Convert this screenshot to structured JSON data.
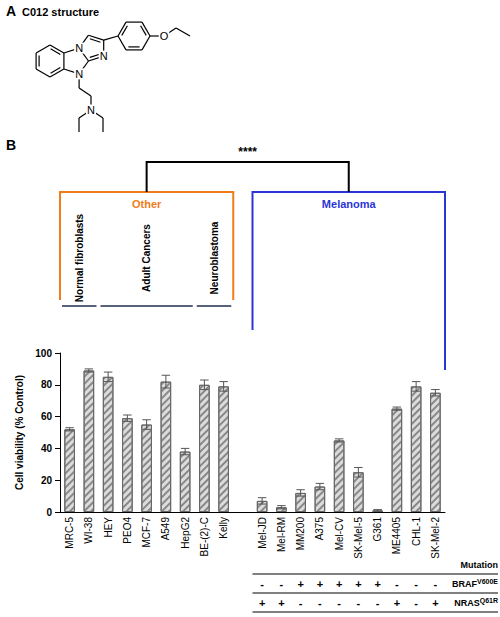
{
  "panel_labels": [
    "A",
    "B"
  ],
  "structure": {
    "title": "C012 structure",
    "atoms": [
      "N",
      "N",
      "N",
      "N",
      "O"
    ]
  },
  "chart_data": {
    "type": "bar",
    "y_label": "Cell viability (% Control)",
    "categories": [
      "MRC-5",
      "WI-38",
      "HEY",
      "PEO4",
      "MCF-7",
      "A549",
      "HepG2",
      "BE-(2)-C",
      "Kelly",
      null,
      "Mel-JD",
      "Mel-RM",
      "MM200",
      "A375",
      "Mel-CV",
      "SK-Mel-5",
      "G361",
      "ME4405",
      "CHL-1",
      "SK-Mel-2"
    ],
    "values": [
      52,
      89,
      85,
      59,
      55,
      82,
      38,
      80,
      79,
      null,
      7,
      3,
      12,
      16,
      45,
      25,
      1,
      65,
      79,
      75
    ],
    "errors": [
      1,
      1,
      3,
      2,
      3,
      4,
      2,
      3,
      3,
      null,
      2,
      1,
      2,
      2,
      1,
      3,
      0.5,
      1,
      3,
      2
    ],
    "color": "#dcdcdc",
    "ylim": [
      0,
      100
    ],
    "yticks": [
      0,
      20,
      40,
      60,
      80,
      100
    ],
    "grid": false,
    "groups": [
      {
        "label": "Normal fibroblasts",
        "from": "MRC-5",
        "to": "WI-38"
      },
      {
        "label": "Adult Cancers",
        "from": "HEY",
        "to": "HepG2"
      },
      {
        "label": "Neuroblastoma",
        "from": "BE-(2)-C",
        "to": "Kelly"
      }
    ],
    "brackets": [
      {
        "label": "Other",
        "from": "MRC-5",
        "to": "Kelly",
        "color": "#f07d1a"
      },
      {
        "label": "Melanoma",
        "from": "Mel-JD",
        "to": "SK-Mel-2",
        "color": "#2b35d6"
      }
    ],
    "significance": "****",
    "mutation_table": {
      "title": "Mutation",
      "columns": [
        "Mel-JD",
        "Mel-RM",
        "MM200",
        "A375",
        "Mel-CV",
        "SK-Mel-5",
        "G361",
        "ME4405",
        "CHL-1",
        "SK-Mel-2"
      ],
      "rows": [
        {
          "gene": "BRAF",
          "variant": "V600E",
          "marks": [
            "-",
            "-",
            "+",
            "+",
            "+",
            "+",
            "+",
            "-",
            "-",
            "-"
          ]
        },
        {
          "gene": "NRAS",
          "variant": "Q61R",
          "marks": [
            "+",
            "+",
            "-",
            "-",
            "-",
            "-",
            "-",
            "+",
            "-",
            "+"
          ]
        }
      ]
    }
  }
}
